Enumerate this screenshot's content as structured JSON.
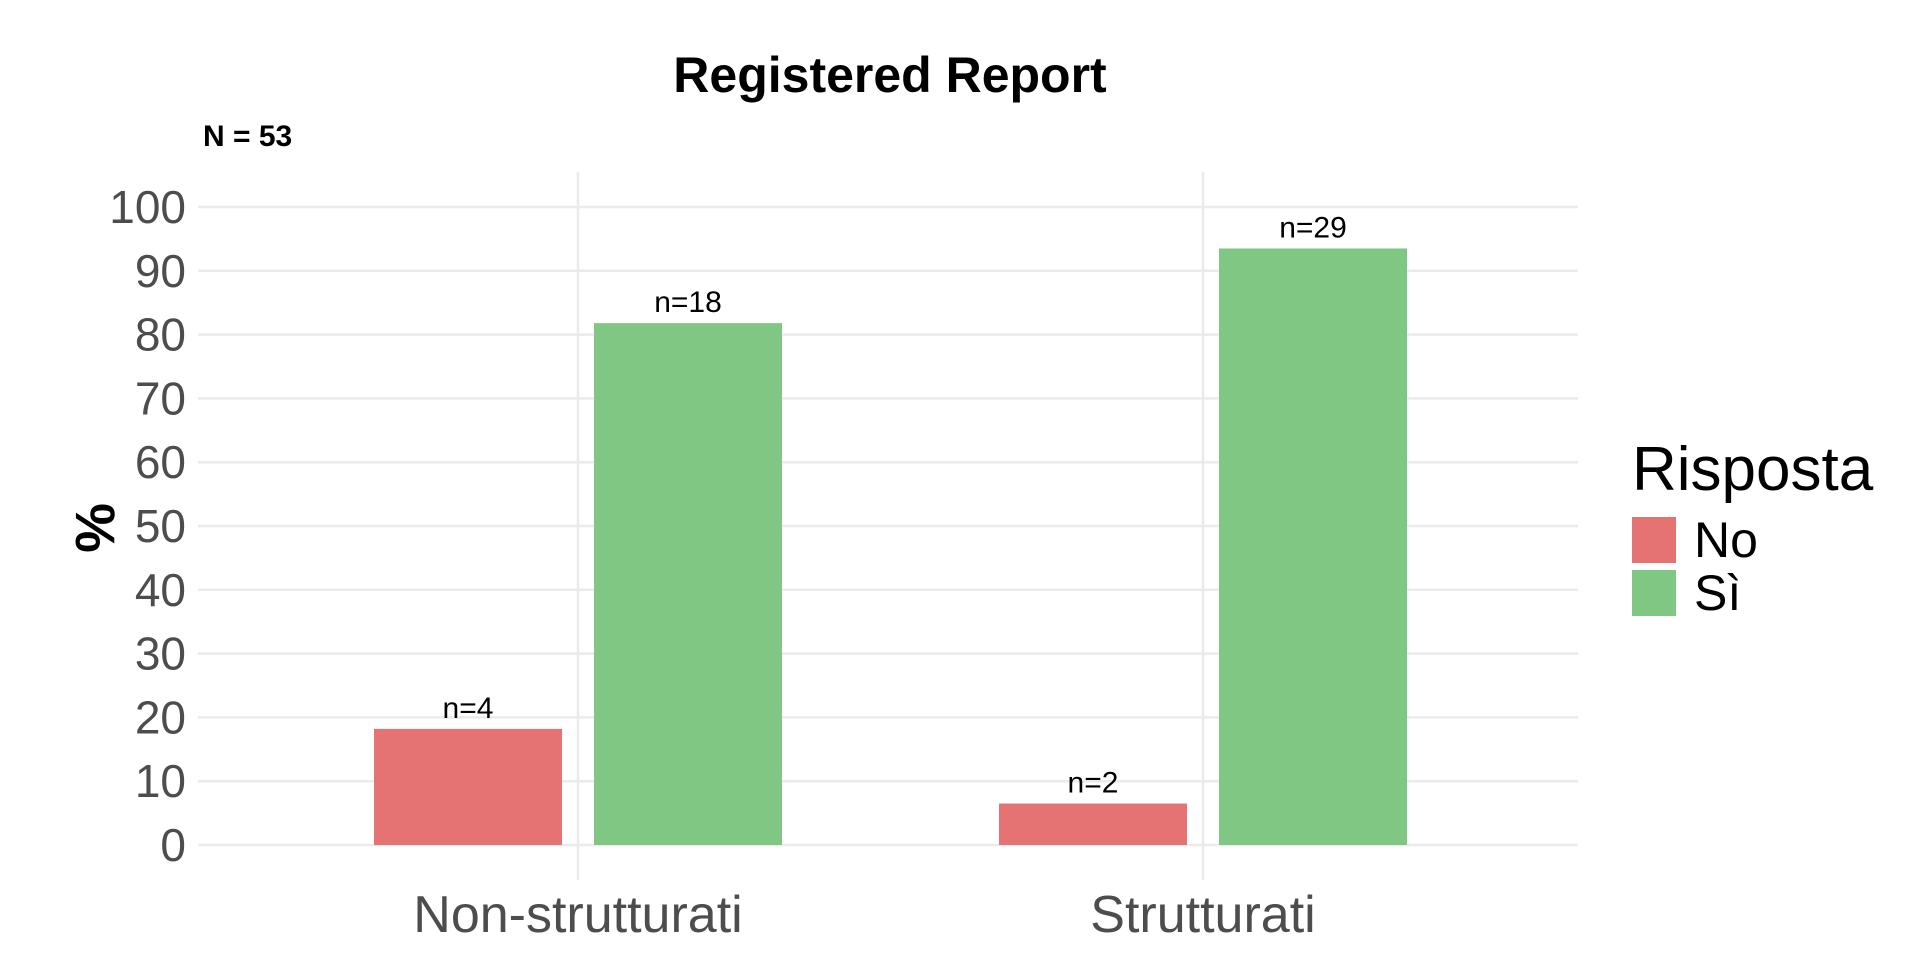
{
  "chart_data": {
    "type": "bar",
    "title": "Registered Report",
    "subtitle": "N = 53",
    "xlabel": "",
    "ylabel": "%",
    "ylim": [
      0,
      100
    ],
    "yticks": [
      0,
      10,
      20,
      30,
      40,
      50,
      60,
      70,
      80,
      90,
      100
    ],
    "categories": [
      "Non-strutturati",
      "Strutturati"
    ],
    "series": [
      {
        "name": "No",
        "color": "#e57373",
        "values": [
          18.2,
          6.5
        ],
        "labels": [
          "n=4",
          "n=2"
        ]
      },
      {
        "name": "Sì",
        "color": "#81c784",
        "values": [
          81.8,
          93.5
        ],
        "labels": [
          "n=18",
          "n=29"
        ]
      }
    ],
    "grid": true,
    "legend": {
      "title": "Risposta",
      "placement": "right"
    }
  }
}
